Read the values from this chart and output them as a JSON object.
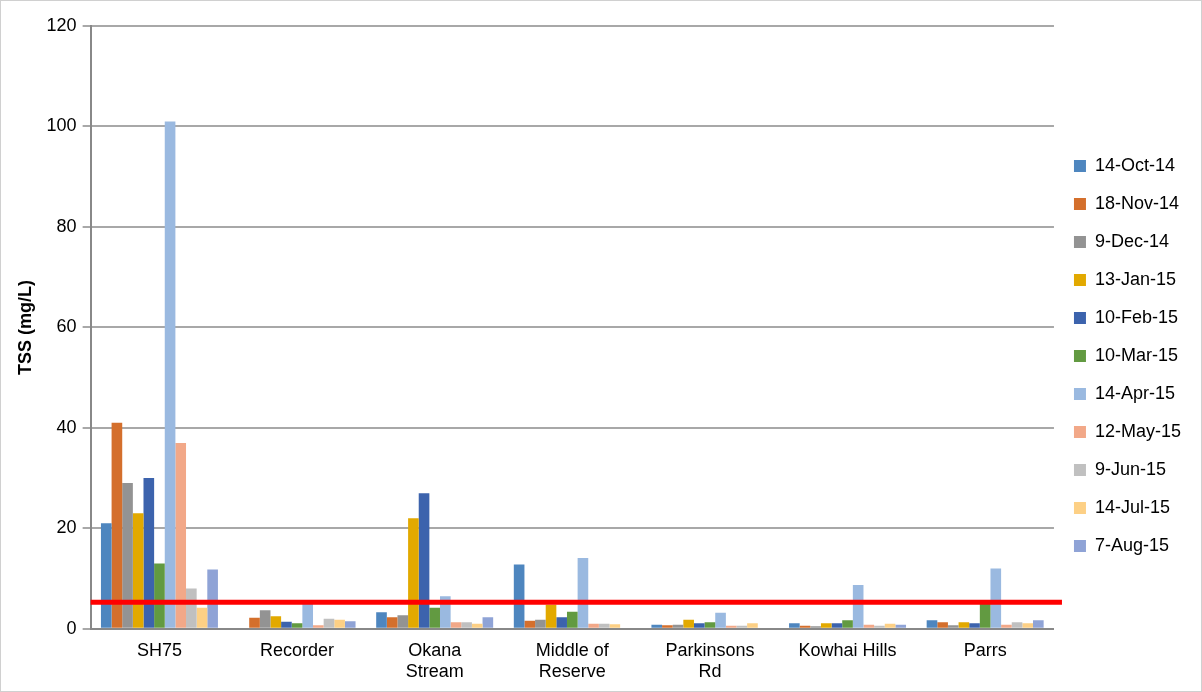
{
  "chart_data": {
    "type": "bar",
    "ylabel": "TSS (mg/L)",
    "categories": [
      "SH75",
      "Recorder",
      "Okana Stream",
      "Middle of Reserve",
      "Parkinsons Rd",
      "Kowhai Hills",
      "Parrs"
    ],
    "series": [
      {
        "name": "14-Oct-14",
        "color": "#4e86bf",
        "values": [
          21,
          null,
          3.3,
          12.8,
          0.8,
          1.1,
          1.7
        ]
      },
      {
        "name": "18-Nov-14",
        "color": "#d46f2c",
        "values": [
          41,
          2.2,
          2.3,
          1.6,
          0.7,
          0.6,
          1.3
        ]
      },
      {
        "name": "9-Dec-14",
        "color": "#939393",
        "values": [
          29,
          3.7,
          2.7,
          1.8,
          0.8,
          0.5,
          0.7
        ]
      },
      {
        "name": "13-Jan-15",
        "color": "#e2a900",
        "values": [
          23,
          2.5,
          22,
          4.8,
          1.8,
          1.1,
          1.3
        ]
      },
      {
        "name": "10-Feb-15",
        "color": "#3c63ad",
        "values": [
          30,
          1.4,
          27,
          2.3,
          1.1,
          1.1,
          1.1
        ]
      },
      {
        "name": "10-Mar-15",
        "color": "#629a41",
        "values": [
          13,
          1.1,
          4.2,
          3.4,
          1.3,
          1.7,
          5
        ]
      },
      {
        "name": "14-Apr-15",
        "color": "#9ab9e0",
        "values": [
          101,
          5,
          6.5,
          14.1,
          3.2,
          8.7,
          12
        ]
      },
      {
        "name": "12-May-15",
        "color": "#f2a888",
        "values": [
          37,
          0.7,
          1.3,
          1,
          0.6,
          0.8,
          0.8
        ]
      },
      {
        "name": "9-Jun-15",
        "color": "#c0c0c0",
        "values": [
          8,
          2,
          1.3,
          1,
          0.6,
          0.6,
          1.3
        ]
      },
      {
        "name": "14-Jul-15",
        "color": "#fdd085",
        "values": [
          4.2,
          1.8,
          1,
          0.9,
          1.1,
          1,
          1.1
        ]
      },
      {
        "name": "7-Aug-15",
        "color": "#8fa3d6",
        "values": [
          11.8,
          1.5,
          2.3,
          0,
          0,
          0.8,
          1.7
        ]
      }
    ],
    "ylim": [
      0,
      120
    ],
    "yticks": [
      0,
      20,
      40,
      60,
      80,
      100,
      120
    ],
    "grid": "y",
    "legend": "right",
    "ref_lines": [
      {
        "axis": "y",
        "value": 5.3,
        "color": "#ff0000"
      }
    ]
  }
}
